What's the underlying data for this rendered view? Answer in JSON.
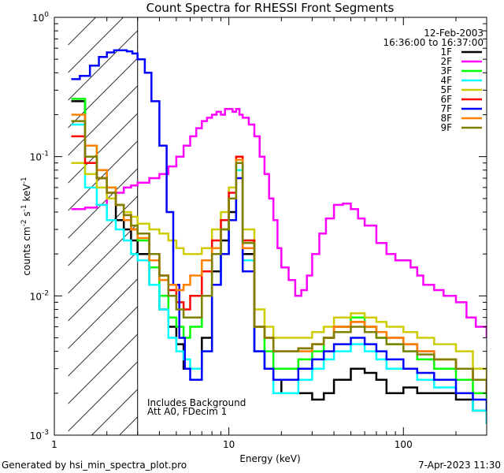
{
  "chart_data": {
    "type": "line",
    "title": "Count Spectra for RHESSI Front Segments",
    "xlabel": "Energy (keV)",
    "ylabel": "counts cm^-2 s^-1 keV^-1",
    "xscale": "log",
    "yscale": "log",
    "xlim": [
      1,
      300
    ],
    "ylim": [
      0.001,
      1
    ],
    "x_ticks": [
      {
        "value": 1,
        "label": "1"
      },
      {
        "value": 10,
        "label": "10"
      },
      {
        "value": 100,
        "label": "100"
      }
    ],
    "y_ticks": [
      {
        "value": 1,
        "label": "10",
        "exp": "0"
      },
      {
        "value": 0.1,
        "label": "10",
        "exp": "-1"
      },
      {
        "value": 0.01,
        "label": "10",
        "exp": "-2"
      },
      {
        "value": 0.001,
        "label": "10",
        "exp": "-3"
      }
    ],
    "date": "12-Feb-2003",
    "time_range": "16:36:00 to 16:37:00",
    "annotations": [
      "Includes Background",
      "Att A0, FDecim 1"
    ],
    "shaded_region": {
      "x0": 1.2,
      "x1": 3.0,
      "note": "hatched low-energy region"
    },
    "series": [
      {
        "name": "1F",
        "color": "#000000",
        "x": [
          1.25,
          1.5,
          1.75,
          2,
          2.25,
          2.5,
          2.75,
          3,
          3.5,
          4,
          4.5,
          5,
          5.5,
          6,
          7,
          8,
          9,
          10,
          11,
          12,
          14,
          16,
          18,
          20,
          25,
          30,
          35,
          40,
          50,
          60,
          70,
          80,
          100,
          120,
          150,
          200,
          250,
          300
        ],
        "y": [
          0.25,
          0.1,
          0.07,
          0.05,
          0.035,
          0.03,
          0.025,
          0.02,
          0.012,
          0.008,
          0.006,
          0.0045,
          0.003,
          0.003,
          0.005,
          0.015,
          0.025,
          0.04,
          0.09,
          0.02,
          0.004,
          0.003,
          0.0025,
          0.002,
          0.002,
          0.0018,
          0.002,
          0.0025,
          0.003,
          0.0028,
          0.0025,
          0.002,
          0.0022,
          0.002,
          0.002,
          0.0018,
          0.0015,
          0.0012
        ]
      },
      {
        "name": "2F",
        "color": "#ff00ff",
        "x": [
          1.25,
          1.5,
          1.75,
          2,
          2.25,
          2.5,
          2.75,
          3,
          3.5,
          4,
          4.5,
          5,
          5.5,
          6,
          6.5,
          7,
          7.5,
          8,
          8.5,
          9,
          9.5,
          10,
          10.5,
          11,
          11.5,
          12,
          13,
          14,
          15,
          16,
          17,
          18,
          19,
          20,
          22,
          24,
          26,
          28,
          30,
          33,
          36,
          40,
          45,
          50,
          55,
          60,
          70,
          80,
          90,
          100,
          110,
          120,
          130,
          150,
          170,
          200,
          230,
          260,
          300
        ],
        "y": [
          0.042,
          0.043,
          0.045,
          0.05,
          0.055,
          0.06,
          0.062,
          0.065,
          0.07,
          0.075,
          0.085,
          0.1,
          0.12,
          0.14,
          0.16,
          0.18,
          0.19,
          0.2,
          0.21,
          0.2,
          0.22,
          0.22,
          0.21,
          0.22,
          0.2,
          0.19,
          0.17,
          0.14,
          0.1,
          0.075,
          0.05,
          0.035,
          0.022,
          0.016,
          0.013,
          0.01,
          0.011,
          0.014,
          0.02,
          0.028,
          0.036,
          0.045,
          0.046,
          0.042,
          0.036,
          0.032,
          0.024,
          0.02,
          0.018,
          0.018,
          0.016,
          0.014,
          0.012,
          0.011,
          0.01,
          0.009,
          0.007,
          0.006,
          0.005
        ]
      },
      {
        "name": "3F",
        "color": "#00ff00",
        "x": [
          1.25,
          1.5,
          1.75,
          2,
          2.25,
          2.5,
          2.75,
          3,
          3.5,
          4,
          4.5,
          5,
          5.5,
          6,
          7,
          8,
          9,
          10,
          11,
          12,
          14,
          16,
          18,
          20,
          25,
          30,
          35,
          40,
          50,
          60,
          70,
          80,
          100,
          120,
          150,
          200,
          250,
          300
        ],
        "y": [
          0.26,
          0.12,
          0.08,
          0.06,
          0.045,
          0.035,
          0.03,
          0.025,
          0.016,
          0.01,
          0.007,
          0.006,
          0.005,
          0.006,
          0.01,
          0.02,
          0.03,
          0.05,
          0.1,
          0.025,
          0.006,
          0.004,
          0.003,
          0.003,
          0.0035,
          0.004,
          0.005,
          0.006,
          0.007,
          0.006,
          0.005,
          0.0045,
          0.004,
          0.0035,
          0.003,
          0.0025,
          0.002,
          0.0015
        ]
      },
      {
        "name": "4F",
        "color": "#00ffff",
        "x": [
          1.25,
          1.5,
          1.75,
          2,
          2.25,
          2.5,
          2.75,
          3,
          3.5,
          4,
          4.5,
          5,
          5.5,
          6,
          7,
          8,
          9,
          10,
          11,
          12,
          14,
          16,
          18,
          20,
          25,
          30,
          35,
          40,
          50,
          60,
          70,
          80,
          100,
          120,
          150,
          200,
          250,
          300
        ],
        "y": [
          0.17,
          0.06,
          0.045,
          0.035,
          0.03,
          0.025,
          0.02,
          0.018,
          0.012,
          0.008,
          0.005,
          0.004,
          0.0035,
          0.003,
          0.004,
          0.012,
          0.02,
          0.035,
          0.08,
          0.018,
          0.004,
          0.003,
          0.002,
          0.002,
          0.0025,
          0.003,
          0.0035,
          0.004,
          0.0045,
          0.004,
          0.0035,
          0.003,
          0.003,
          0.0025,
          0.0022,
          0.002,
          0.0015,
          0.0012
        ]
      },
      {
        "name": "5F",
        "color": "#cccc00",
        "x": [
          1.25,
          1.5,
          1.75,
          2,
          2.25,
          2.5,
          2.75,
          3,
          3.5,
          4,
          4.5,
          5,
          5.5,
          6,
          7,
          8,
          9,
          10,
          11,
          12,
          14,
          16,
          18,
          20,
          25,
          30,
          35,
          40,
          50,
          60,
          70,
          80,
          100,
          120,
          150,
          200,
          250,
          300
        ],
        "y": [
          0.09,
          0.075,
          0.06,
          0.05,
          0.045,
          0.04,
          0.037,
          0.033,
          0.03,
          0.028,
          0.025,
          0.022,
          0.02,
          0.02,
          0.022,
          0.03,
          0.04,
          0.06,
          0.1,
          0.03,
          0.008,
          0.006,
          0.005,
          0.005,
          0.005,
          0.0055,
          0.006,
          0.007,
          0.0075,
          0.007,
          0.0065,
          0.006,
          0.0055,
          0.005,
          0.0045,
          0.004,
          0.003,
          0.0025
        ]
      },
      {
        "name": "6F",
        "color": "#ff0000",
        "x": [
          1.25,
          1.5,
          1.75,
          2,
          2.25,
          2.5,
          2.75,
          3,
          3.5,
          4,
          4.5,
          5,
          5.5,
          6,
          7,
          8,
          9,
          10,
          11,
          12,
          14,
          16,
          18,
          20,
          25,
          30,
          35,
          40,
          50,
          60,
          70,
          80,
          100,
          120,
          150,
          200,
          250,
          300
        ],
        "y": [
          0.14,
          0.09,
          0.07,
          0.055,
          0.045,
          0.038,
          0.03,
          0.028,
          0.02,
          0.014,
          0.011,
          0.009,
          0.008,
          0.01,
          0.015,
          0.025,
          0.035,
          0.055,
          0.1,
          0.025,
          0.006,
          0.005,
          0.004,
          0.004,
          0.0042,
          0.0045,
          0.005,
          0.006,
          0.0065,
          0.006,
          0.0055,
          0.005,
          0.0045,
          0.004,
          0.0035,
          0.003,
          0.0025,
          0.002
        ]
      },
      {
        "name": "7F",
        "color": "#0000ff",
        "x": [
          1.25,
          1.4,
          1.6,
          1.8,
          2,
          2.2,
          2.4,
          2.6,
          2.8,
          3,
          3.3,
          3.6,
          4,
          4.4,
          4.8,
          5.2,
          5.6,
          6,
          7,
          8,
          9,
          10,
          11,
          12,
          14,
          16,
          18,
          20,
          25,
          30,
          35,
          40,
          50,
          60,
          70,
          80,
          100,
          120,
          150,
          200,
          250,
          300
        ],
        "y": [
          0.36,
          0.38,
          0.45,
          0.52,
          0.56,
          0.58,
          0.58,
          0.57,
          0.55,
          0.5,
          0.4,
          0.25,
          0.12,
          0.04,
          0.012,
          0.005,
          0.003,
          0.0025,
          0.004,
          0.012,
          0.02,
          0.035,
          0.07,
          0.015,
          0.004,
          0.003,
          0.0025,
          0.0025,
          0.003,
          0.0035,
          0.004,
          0.0045,
          0.005,
          0.0045,
          0.004,
          0.0035,
          0.003,
          0.0028,
          0.0025,
          0.002,
          0.0018,
          0.0015
        ]
      },
      {
        "name": "8F",
        "color": "#ff8000",
        "x": [
          1.25,
          1.5,
          1.75,
          2,
          2.25,
          2.5,
          2.75,
          3,
          3.5,
          4,
          4.5,
          5,
          5.5,
          6,
          7,
          8,
          9,
          10,
          11,
          12,
          14,
          16,
          18,
          20,
          25,
          30,
          35,
          40,
          50,
          60,
          70,
          80,
          100,
          120,
          150,
          200,
          250,
          300
        ],
        "y": [
          0.2,
          0.12,
          0.08,
          0.06,
          0.045,
          0.035,
          0.03,
          0.026,
          0.018,
          0.013,
          0.012,
          0.011,
          0.012,
          0.014,
          0.018,
          0.022,
          0.03,
          0.05,
          0.095,
          0.022,
          0.006,
          0.005,
          0.004,
          0.004,
          0.004,
          0.0045,
          0.005,
          0.006,
          0.0065,
          0.006,
          0.0055,
          0.005,
          0.0045,
          0.004,
          0.0035,
          0.003,
          0.0025,
          0.002
        ]
      },
      {
        "name": "9F",
        "color": "#808000",
        "x": [
          1.25,
          1.5,
          1.75,
          2,
          2.25,
          2.5,
          2.75,
          3,
          3.5,
          4,
          4.5,
          5,
          5.5,
          6,
          7,
          8,
          9,
          10,
          11,
          12,
          14,
          16,
          18,
          20,
          25,
          30,
          35,
          40,
          50,
          60,
          70,
          80,
          100,
          120,
          150,
          200,
          250,
          300
        ],
        "y": [
          0.18,
          0.1,
          0.07,
          0.055,
          0.045,
          0.038,
          0.032,
          0.028,
          0.02,
          0.014,
          0.01,
          0.008,
          0.007,
          0.007,
          0.01,
          0.02,
          0.03,
          0.05,
          0.09,
          0.024,
          0.006,
          0.005,
          0.004,
          0.004,
          0.0042,
          0.0045,
          0.005,
          0.0055,
          0.006,
          0.0055,
          0.005,
          0.0045,
          0.004,
          0.0038,
          0.0035,
          0.003,
          0.0025,
          0.002
        ]
      }
    ]
  },
  "footer": {
    "generated_by": "Generated by hsi_min_spectra_plot.pro",
    "timestamp": "7-Apr-2023 11:30"
  }
}
